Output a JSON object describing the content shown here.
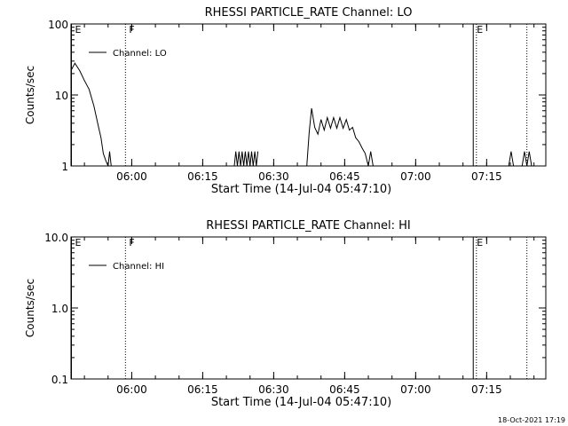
{
  "timestamp": "18-Oct-2021 17:19",
  "chart_data": [
    {
      "type": "line",
      "title": "RHESSI PARTICLE_RATE Channel: LO",
      "xlabel": "Start Time (14-Jul-04 05:47:10)",
      "ylabel": "Counts/sec",
      "yscale": "log",
      "ylim": [
        1,
        100
      ],
      "yticks": [
        1,
        10,
        100
      ],
      "ytick_labels": [
        "1",
        "10",
        "100"
      ],
      "xlim": [
        "05:47:10",
        "07:27:30"
      ],
      "xticks": [
        "06:00",
        "06:15",
        "06:30",
        "06:45",
        "07:00",
        "07:15"
      ],
      "xtick_labels": [
        "06:00",
        "06:15",
        "06:30",
        "06:45",
        "07:00",
        "07:15"
      ],
      "legend": {
        "position": "top-left",
        "entries": [
          "Channel: LO"
        ]
      },
      "series": [
        {
          "name": "Channel: LO",
          "segments": [
            {
              "x": [
                "05:47:10",
                "05:48:00",
                "05:49:00",
                "05:50:00",
                "05:51:00",
                "05:52:00",
                "05:53:00",
                "05:53:30",
                "05:54:00",
                "05:54:30",
                "05:55:00"
              ],
              "y": [
                22,
                28,
                22,
                16,
                12,
                7,
                3.5,
                2.5,
                1.5,
                1.2,
                1
              ]
            },
            {
              "x": [
                "05:55:00",
                "05:55:20",
                "05:55:40"
              ],
              "y": [
                1,
                1.6,
                1
              ]
            },
            {
              "x": [
                "06:21:40",
                "06:22:00",
                "06:22:20",
                "06:22:40",
                "06:23:00",
                "06:23:20",
                "06:23:40",
                "06:24:00",
                "06:24:20",
                "06:24:40",
                "06:25:00",
                "06:25:20",
                "06:25:40",
                "06:26:00",
                "06:26:20",
                "06:26:40"
              ],
              "y": [
                1,
                1.6,
                1,
                1.6,
                1,
                1.6,
                1,
                1.6,
                1,
                1.6,
                1,
                1.6,
                1,
                1.6,
                1,
                1.6
              ]
            },
            {
              "x": [
                "06:37:00",
                "06:37:30",
                "06:38:00",
                "06:38:40",
                "06:39:20",
                "06:40:00",
                "06:40:40",
                "06:41:20",
                "06:42:00",
                "06:42:40",
                "06:43:20",
                "06:44:00",
                "06:44:40",
                "06:45:20",
                "06:46:00",
                "06:46:40",
                "06:47:20",
                "06:48:00",
                "06:48:40",
                "06:49:20",
                "06:50:00"
              ],
              "y": [
                1,
                3,
                6.5,
                3.5,
                2.8,
                4.5,
                3.2,
                4.8,
                3.4,
                4.8,
                3.4,
                4.8,
                3.4,
                4.5,
                3.2,
                3.5,
                2.5,
                2.2,
                1.8,
                1.5,
                1
              ]
            },
            {
              "x": [
                "06:50:00",
                "06:50:30",
                "06:51:00"
              ],
              "y": [
                1,
                1.6,
                1
              ]
            },
            {
              "x": [
                "07:19:40",
                "07:20:10",
                "07:20:40"
              ],
              "y": [
                1,
                1.6,
                1
              ]
            },
            {
              "x": [
                "07:22:30",
                "07:23:00",
                "07:23:30",
                "07:24:00",
                "07:24:30"
              ],
              "y": [
                1,
                1.6,
                1,
                1.6,
                1
              ]
            }
          ]
        }
      ],
      "markers": [
        {
          "label": "E",
          "time": "05:47:10",
          "style": "solid"
        },
        {
          "label": "F",
          "time": "05:58:40",
          "style": "dotted"
        },
        {
          "label": "E",
          "time": "07:12:10",
          "style": "solid"
        },
        {
          "label": "",
          "time": "07:12:50",
          "style": "dotted"
        },
        {
          "label": "",
          "time": "07:23:30",
          "style": "dotted"
        }
      ]
    },
    {
      "type": "line",
      "title": "RHESSI PARTICLE_RATE Channel: HI",
      "xlabel": "Start Time (14-Jul-04 05:47:10)",
      "ylabel": "Counts/sec",
      "yscale": "log",
      "ylim": [
        0.1,
        10
      ],
      "yticks": [
        0.1,
        1,
        10
      ],
      "ytick_labels": [
        "0.1",
        "1.0",
        "10.0"
      ],
      "xlim": [
        "05:47:10",
        "07:27:30"
      ],
      "xticks": [
        "06:00",
        "06:15",
        "06:30",
        "06:45",
        "07:00",
        "07:15"
      ],
      "xtick_labels": [
        "06:00",
        "06:15",
        "06:30",
        "06:45",
        "07:00",
        "07:15"
      ],
      "legend": {
        "position": "top-left",
        "entries": [
          "Channel: HI"
        ]
      },
      "series": [
        {
          "name": "Channel: HI",
          "segments": []
        }
      ],
      "markers": [
        {
          "label": "E",
          "time": "05:47:10",
          "style": "solid"
        },
        {
          "label": "F",
          "time": "05:58:40",
          "style": "dotted"
        },
        {
          "label": "E",
          "time": "07:12:10",
          "style": "solid"
        },
        {
          "label": "",
          "time": "07:12:50",
          "style": "dotted"
        },
        {
          "label": "",
          "time": "07:23:30",
          "style": "dotted"
        }
      ]
    }
  ]
}
